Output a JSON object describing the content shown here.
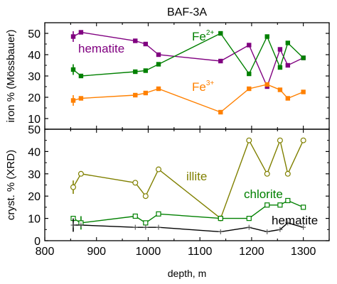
{
  "chart_data": [
    {
      "type": "line",
      "title": "BAF-3A",
      "ylabel": "iron % (Mössbauer)",
      "xlim": [
        800,
        1350
      ],
      "ylim": [
        5,
        55
      ],
      "yticks": [
        "10",
        "20",
        "30",
        "40",
        "50"
      ],
      "grid": false,
      "series": [
        {
          "name": "hematite",
          "marker": "filled-square",
          "color": "#800080",
          "points": [
            [
              855,
              48.5
            ],
            [
              870,
              50.5
            ],
            [
              975,
              46.5
            ],
            [
              995,
              45
            ],
            [
              1020,
              40
            ],
            [
              1140,
              37
            ],
            [
              1195,
              44.5
            ],
            [
              1230,
              25
            ],
            [
              1255,
              42.5
            ],
            [
              1270,
              35
            ],
            [
              1300,
              38.5
            ]
          ]
        },
        {
          "name": "Fe2+",
          "label_base": "Fe",
          "label_sup": "2+",
          "marker": "filled-square",
          "color": "#008000",
          "points": [
            [
              855,
              33
            ],
            [
              870,
              30
            ],
            [
              975,
              32
            ],
            [
              995,
              32.5
            ],
            [
              1020,
              35.5
            ],
            [
              1140,
              50
            ],
            [
              1195,
              31
            ],
            [
              1230,
              48.5
            ],
            [
              1255,
              34
            ],
            [
              1270,
              45.5
            ],
            [
              1300,
              38.5
            ]
          ]
        },
        {
          "name": "Fe3+",
          "label_base": "Fe",
          "label_sup": "3+",
          "marker": "filled-square",
          "color": "#ff8000",
          "points": [
            [
              855,
              18.5
            ],
            [
              870,
              19.5
            ],
            [
              975,
              21
            ],
            [
              995,
              22
            ],
            [
              1020,
              24
            ],
            [
              1140,
              13
            ],
            [
              1195,
              24
            ],
            [
              1230,
              26
            ],
            [
              1255,
              23.5
            ],
            [
              1270,
              19.5
            ],
            [
              1300,
              22.5
            ]
          ]
        }
      ],
      "error_bars": [
        {
          "series": "hematite",
          "x": 855,
          "y": 48.5,
          "err": 2.5
        },
        {
          "series": "Fe2+",
          "x": 855,
          "y": 33,
          "err": 2.5
        },
        {
          "series": "Fe3+",
          "x": 855,
          "y": 18.5,
          "err": 2.5
        }
      ]
    },
    {
      "type": "line",
      "ylabel": "cryst. % (XRD)",
      "xlabel": "depth, m",
      "xlim": [
        800,
        1350
      ],
      "ylim": [
        0,
        50
      ],
      "xticks": [
        "800",
        "900",
        "1000",
        "1100",
        "1200",
        "1300"
      ],
      "yticks": [
        "0",
        "10",
        "20",
        "30",
        "40",
        "50"
      ],
      "grid": false,
      "series": [
        {
          "name": "illite",
          "marker": "open-circle",
          "color": "#808000",
          "points": [
            [
              855,
              24
            ],
            [
              870,
              30
            ],
            [
              975,
              26
            ],
            [
              995,
              20
            ],
            [
              1020,
              32
            ],
            [
              1140,
              10
            ],
            [
              1195,
              45
            ],
            [
              1230,
              30
            ],
            [
              1255,
              45
            ],
            [
              1270,
              30
            ],
            [
              1300,
              45
            ]
          ]
        },
        {
          "name": "chlorite",
          "marker": "open-square",
          "color": "#008000",
          "points": [
            [
              855,
              10
            ],
            [
              870,
              8
            ],
            [
              975,
              11
            ],
            [
              995,
              8
            ],
            [
              1020,
              12
            ],
            [
              1140,
              10
            ],
            [
              1195,
              10
            ],
            [
              1230,
              16
            ],
            [
              1255,
              16
            ],
            [
              1270,
              18
            ],
            [
              1300,
              15
            ]
          ]
        },
        {
          "name": "hematite",
          "marker": "plus",
          "color": "#000000",
          "points": [
            [
              855,
              7
            ],
            [
              870,
              7
            ],
            [
              975,
              6
            ],
            [
              995,
              6
            ],
            [
              1020,
              6
            ],
            [
              1140,
              4
            ],
            [
              1195,
              6
            ],
            [
              1230,
              4
            ],
            [
              1255,
              5
            ],
            [
              1270,
              8
            ],
            [
              1300,
              6
            ]
          ]
        }
      ],
      "error_bars": [
        {
          "series": "illite",
          "x": 855,
          "y": 24,
          "err": 3
        },
        {
          "series": "chlorite",
          "x": 870,
          "y": 8,
          "err": 3
        },
        {
          "series": "hematite",
          "x": 855,
          "y": 7,
          "err": 3
        }
      ]
    }
  ]
}
